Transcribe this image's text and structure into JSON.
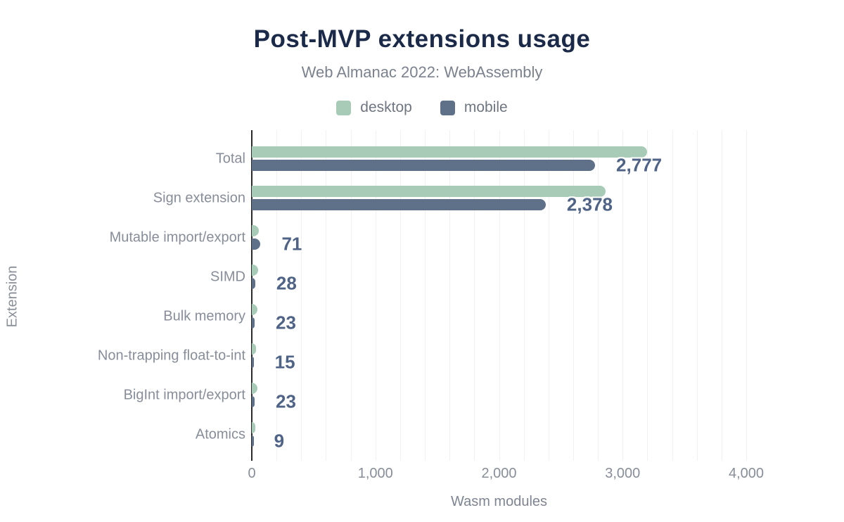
{
  "header": {
    "title": "Post-MVP extensions usage",
    "subtitle": "Web Almanac 2022: WebAssembly"
  },
  "legend": [
    {
      "label": "desktop",
      "color": "#a8cbb8"
    },
    {
      "label": "mobile",
      "color": "#5f7189"
    }
  ],
  "colors": {
    "title": "#1c2a49",
    "desktop_bar": "#a8cbb8",
    "mobile_bar": "#5f7189",
    "value_label": "#4f6386",
    "axis_text": "#878e99",
    "axis_line": "#2a2a2a",
    "gridline": "#f1f1f3",
    "background": "#ffffff"
  },
  "chart_data": {
    "type": "bar",
    "orientation": "horizontal",
    "title": "Post-MVP extensions usage",
    "subtitle": "Web Almanac 2022: WebAssembly",
    "xlabel": "Wasm modules",
    "ylabel": "Extension",
    "xlim": [
      0,
      4000
    ],
    "x_ticks": [
      0,
      1000,
      2000,
      3000,
      4000
    ],
    "x_tick_labels": [
      "0",
      "1,000",
      "2,000",
      "3,000",
      "4,000"
    ],
    "minor_grid_step": 200,
    "grid": "vertical-only",
    "legend_position": "top",
    "categories": [
      "Total",
      "Sign extension",
      "Mutable import/export",
      "SIMD",
      "Bulk memory",
      "Non-trapping float-to-int",
      "BigInt import/export",
      "Atomics"
    ],
    "series": [
      {
        "name": "desktop",
        "color": "#a8cbb8",
        "values": [
          3200,
          2860,
          55,
          50,
          45,
          35,
          45,
          30
        ],
        "values_estimated_from_pixels": true
      },
      {
        "name": "mobile",
        "color": "#5f7189",
        "values": [
          2777,
          2378,
          71,
          28,
          23,
          15,
          23,
          9
        ],
        "value_labels": [
          "2,777",
          "2,378",
          "71",
          "28",
          "23",
          "15",
          "23",
          "9"
        ]
      }
    ],
    "value_labels_series": "mobile"
  }
}
